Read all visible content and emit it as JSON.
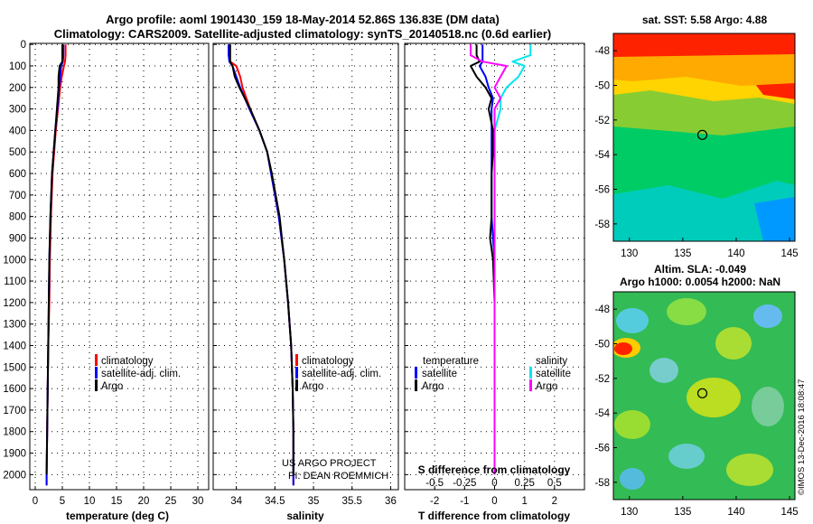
{
  "header": {
    "title_line1": "Argo profile: aoml 1901430_159 18-May-2014 52.86S 136.83E (DM data)",
    "title_line2": "Climatology: CARS2009. Satellite-adjusted climatology: synTS_20140518.nc (0.6d earlier)"
  },
  "colors": {
    "climatology": "#ff0000",
    "satellite": "#0000ff",
    "argo": "#000000",
    "sal_satellite": "#00e5ee",
    "sal_argo": "#ff00ff"
  },
  "depth_ticks": [
    "0",
    "100",
    "200",
    "300",
    "400",
    "500",
    "600",
    "700",
    "800",
    "900",
    "1000",
    "1100",
    "1200",
    "1300",
    "1400",
    "1500",
    "1600",
    "1700",
    "1800",
    "1900",
    "2000"
  ],
  "chart_data": [
    {
      "type": "line",
      "panel": "temperature",
      "xlabel": "temperature (deg C)",
      "xlim": [
        -1,
        32
      ],
      "ylim": [
        2070,
        -5
      ],
      "xticks": [
        0,
        5,
        10,
        15,
        20,
        25,
        30
      ],
      "xtick_labels": [
        "0",
        "5",
        "10",
        "15",
        "20",
        "25",
        "30"
      ],
      "depth": [
        0,
        50,
        80,
        100,
        150,
        200,
        300,
        400,
        500,
        600,
        800,
        1000,
        1200,
        1400,
        1600,
        1800,
        2000,
        2050
      ],
      "series": [
        {
          "name": "climatology",
          "color": "#ff0000",
          "values": [
            5.6,
            5.6,
            5.5,
            5.3,
            4.9,
            4.6,
            4.2,
            3.8,
            3.5,
            3.2,
            2.9,
            2.7,
            2.6,
            2.4,
            2.3,
            2.2,
            2.1,
            2.1
          ]
        },
        {
          "name": "satellite-adj. clim.",
          "color": "#0000ff",
          "values": [
            5.2,
            5.2,
            5.1,
            4.8,
            4.6,
            4.4,
            4.1,
            3.7,
            3.4,
            3.1,
            2.8,
            2.6,
            2.5,
            2.4,
            2.3,
            2.2,
            2.1,
            2.1
          ]
        },
        {
          "name": "Argo",
          "color": "#000000",
          "values": [
            5.0,
            5.0,
            5.0,
            4.5,
            4.3,
            4.3,
            4.0,
            3.7,
            3.4,
            3.1,
            2.8,
            2.6,
            2.5,
            2.4,
            2.3,
            2.2,
            2.1,
            null
          ]
        }
      ],
      "legend": [
        "climatology",
        "satellite-adj. clim.",
        "Argo"
      ],
      "legend_position": "middle-right"
    },
    {
      "type": "line",
      "panel": "salinity",
      "xlabel": "salinity",
      "xlim": [
        33.7,
        36.1
      ],
      "ylim": [
        2070,
        -5
      ],
      "xticks": [
        34,
        34.5,
        35,
        35.5,
        36
      ],
      "xtick_labels": [
        "34",
        "34.5",
        "35",
        "35.5",
        "36"
      ],
      "depth": [
        0,
        50,
        80,
        100,
        150,
        200,
        300,
        400,
        500,
        600,
        800,
        1000,
        1200,
        1400,
        1600,
        1800,
        2000,
        2050
      ],
      "series": [
        {
          "name": "climatology",
          "color": "#ff0000",
          "values": [
            33.9,
            33.9,
            33.92,
            34.0,
            34.05,
            34.08,
            34.18,
            34.3,
            34.4,
            34.45,
            34.55,
            34.62,
            34.67,
            34.71,
            34.73,
            34.74,
            34.74,
            34.74
          ]
        },
        {
          "name": "satellite-adj. clim.",
          "color": "#0000ff",
          "values": [
            33.9,
            33.9,
            33.91,
            33.95,
            34.0,
            34.05,
            34.17,
            34.3,
            34.4,
            34.45,
            34.55,
            34.62,
            34.67,
            34.71,
            34.73,
            34.74,
            34.74,
            34.74
          ]
        },
        {
          "name": "Argo",
          "color": "#000000",
          "values": [
            33.92,
            33.92,
            33.92,
            33.95,
            33.98,
            34.04,
            34.18,
            34.3,
            34.4,
            34.46,
            34.56,
            34.62,
            34.67,
            34.71,
            34.73,
            34.74,
            34.74,
            null
          ]
        }
      ],
      "legend": [
        "climatology",
        "satellite-adj. clim.",
        "Argo"
      ],
      "legend_position": "middle-right",
      "annotations": [
        "US ARGO PROJECT",
        "PI: DEAN ROEMMICH"
      ]
    },
    {
      "type": "line",
      "panel": "difference",
      "xlabel": "T difference from climatology",
      "xlabel2": "S difference from climatology",
      "xlim": [
        -3,
        3
      ],
      "ylim": [
        2070,
        -5
      ],
      "xticks": [
        -2,
        -1,
        0,
        1,
        2
      ],
      "xtick_labels": [
        "-2",
        "-1",
        "0",
        "1",
        "2"
      ],
      "sticks": [
        -0.5,
        -0.25,
        0,
        0.25,
        0.5
      ],
      "stick_labels": [
        "-0.5",
        "-0.25",
        "0",
        "0.25",
        "0.5"
      ],
      "depth": [
        0,
        50,
        80,
        100,
        150,
        200,
        250,
        300,
        400,
        500,
        600,
        800,
        900,
        1000,
        1200,
        1400,
        1600,
        1800,
        2000
      ],
      "series": [
        {
          "name": "temperature satellite",
          "color": "#0000ff",
          "values": [
            -0.4,
            -0.4,
            -0.4,
            -0.5,
            -0.3,
            -0.2,
            -0.05,
            -0.1,
            -0.1,
            -0.1,
            -0.1,
            -0.1,
            -0.05,
            0.0,
            0.0,
            0.0,
            0.0,
            0.0,
            0.0
          ]
        },
        {
          "name": "temperature Argo",
          "color": "#000000",
          "values": [
            -0.6,
            -0.6,
            -0.5,
            -0.8,
            -0.6,
            -0.3,
            -0.1,
            -0.2,
            -0.05,
            -0.05,
            -0.1,
            -0.1,
            -0.15,
            -0.05,
            0.0,
            0.0,
            0.0,
            0.0,
            0.0
          ]
        },
        {
          "name": "salinity satellite",
          "color": "#00e5ee",
          "values": [
            0.3,
            0.3,
            0.15,
            0.25,
            0.2,
            0.1,
            0.05,
            0.05,
            0.0,
            0.0,
            0.0,
            0.0,
            0.0,
            0.0,
            0.0,
            0.0,
            0.0,
            0.0,
            0.0
          ]
        },
        {
          "name": "salinity Argo",
          "color": "#ff00ff",
          "values": [
            -0.2,
            -0.2,
            -0.1,
            0.1,
            0.05,
            0.0,
            0.05,
            0.0,
            0.0,
            0.0,
            0.0,
            0.0,
            0.0,
            0.0,
            0.0,
            0.0,
            0.0,
            0.0,
            0.0
          ]
        }
      ],
      "legend_titles": [
        "temperature",
        "salinity"
      ],
      "legend": [
        "satellite",
        "Argo",
        "satellite",
        "Argo"
      ],
      "legend_position": "middle"
    },
    {
      "type": "heatmap",
      "panel": "sst_map",
      "title": "sat. SST: 5.58 Argo: 4.88",
      "xlim": [
        128.5,
        145.5
      ],
      "ylim": [
        -59,
        -47
      ],
      "xticks": [
        130,
        135,
        140,
        145
      ],
      "xtick_labels": [
        "130",
        "135",
        "140",
        "145"
      ],
      "yticks": [
        -48,
        -50,
        -52,
        -54,
        -56,
        -58
      ],
      "ytick_labels": [
        "-48",
        "-50",
        "-52",
        "-54",
        "-56",
        "-58"
      ],
      "marker": {
        "lon": 136.83,
        "lat": -52.86
      }
    },
    {
      "type": "heatmap",
      "panel": "sla_map",
      "title_line1": "Altim. SLA: -0.049",
      "title_line2": "Argo h1000: 0.0054 h2000: NaN",
      "xlim": [
        128.5,
        145.5
      ],
      "ylim": [
        -59,
        -47
      ],
      "xticks": [
        130,
        135,
        140,
        145
      ],
      "xtick_labels": [
        "130",
        "135",
        "140",
        "145"
      ],
      "yticks": [
        -48,
        -50,
        -52,
        -54,
        -56,
        -58
      ],
      "ytick_labels": [
        "-48",
        "-50",
        "-52",
        "-54",
        "-56",
        "-58"
      ],
      "marker": {
        "lon": 136.83,
        "lat": -52.86
      },
      "side_text": "©IMOS 13-Dec-2016 18:08:47"
    }
  ]
}
